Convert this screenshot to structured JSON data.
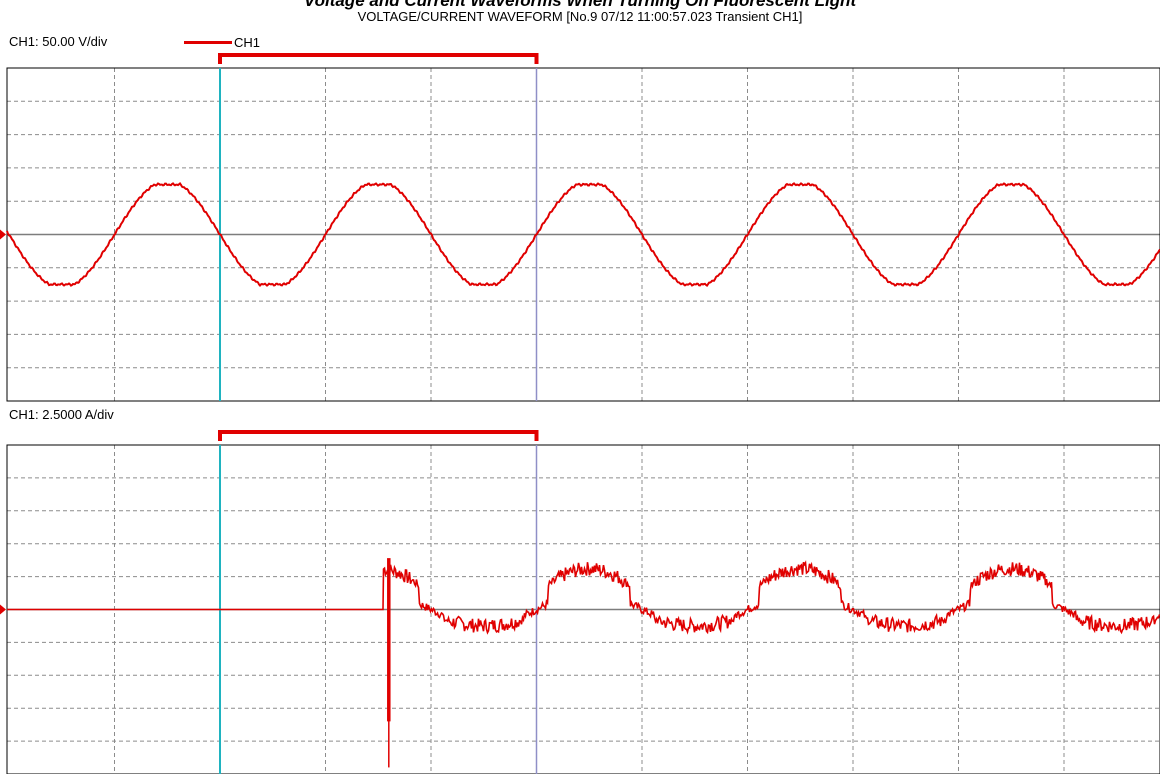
{
  "header": {
    "title": "Voltage and Current Waveforms When Turning On Fluorescent Light",
    "subtitle": "VOLTAGE/CURRENT WAVEFORM [No.9 07/12 11:00:57.023  Transient  CH1]"
  },
  "colors": {
    "waveform": "#e00000",
    "cursor_a": "#1fb3c0",
    "cursor_b": "#8f8fc7",
    "grid": "#8c8c8c",
    "axis": "#7d7d7d"
  },
  "chart_data": [
    {
      "type": "line",
      "name": "voltage",
      "scale_label": "CH1:  50.00 V/div",
      "legend": [
        "CH1"
      ],
      "series": [
        {
          "name": "CH1",
          "amplitude": 75,
          "cycles_visible": 5.5,
          "first_zero_crossing_div": 2.0
        }
      ],
      "grid": true,
      "divisions": {
        "x": 11,
        "y": 10
      },
      "ylim": [
        -250,
        250
      ],
      "cursors_div": [
        2.0,
        5.0
      ]
    },
    {
      "type": "line",
      "name": "current",
      "scale_label": "CH1: 2.5000 A/div",
      "series": [
        {
          "name": "CH1",
          "amplitude": 3.1,
          "pre_event_value": 0,
          "event_div": 3.55,
          "spike_div": 3.6,
          "spike_range": [
            -8.5,
            3.9
          ]
        }
      ],
      "grid": true,
      "divisions": {
        "x": 11,
        "y": 10
      },
      "ylim": [
        -12.5,
        12.5
      ],
      "cursors_div": [
        2.0,
        5.0
      ]
    }
  ]
}
